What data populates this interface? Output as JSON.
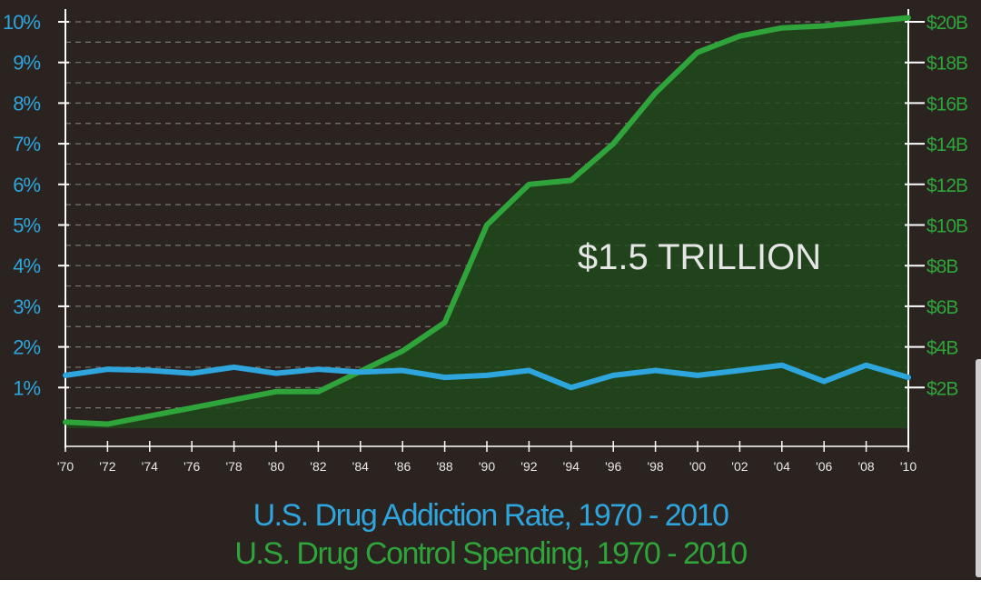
{
  "chart_data": {
    "type": "line",
    "title": "",
    "annotation": "$1.5 TRILLION",
    "x": [
      "'70",
      "'72",
      "'74",
      "'76",
      "'78",
      "'80",
      "'82",
      "'84",
      "'86",
      "'88",
      "'90",
      "'92",
      "'94",
      "'96",
      "'98",
      "'00",
      "'02",
      "'04",
      "'06",
      "'08",
      "'10"
    ],
    "series": [
      {
        "name": "U.S. Drug Addiction Rate, 1970 - 2010",
        "axis": "left",
        "color": "#2ea6dd",
        "values": [
          1.3,
          1.45,
          1.42,
          1.35,
          1.5,
          1.35,
          1.45,
          1.38,
          1.42,
          1.25,
          1.3,
          1.42,
          1.0,
          1.3,
          1.42,
          1.3,
          1.42,
          1.55,
          1.15,
          1.55,
          1.25
        ]
      },
      {
        "name": "U.S. Drug Control Spending, 1970 - 2010",
        "axis": "right",
        "color": "#2ea43a",
        "fill": true,
        "values_billions": [
          0.3,
          0.2,
          0.6,
          1.0,
          1.4,
          1.8,
          1.8,
          2.8,
          3.8,
          5.2,
          10.0,
          12.0,
          12.2,
          14.0,
          16.5,
          18.5,
          19.3,
          19.7,
          19.8,
          20.0,
          20.2
        ]
      }
    ],
    "y_left": {
      "ticks": [
        "1%",
        "2%",
        "3%",
        "4%",
        "5%",
        "6%",
        "7%",
        "8%",
        "9%",
        "10%"
      ],
      "values": [
        1,
        2,
        3,
        4,
        5,
        6,
        7,
        8,
        9,
        10
      ],
      "range": [
        0,
        10
      ],
      "color": "#2ea6dd"
    },
    "y_right": {
      "ticks": [
        "$2B",
        "$4B",
        "$6B",
        "$8B",
        "$10B",
        "$12B",
        "$14B",
        "$16B",
        "$18B",
        "$20B"
      ],
      "values": [
        2,
        4,
        6,
        8,
        10,
        12,
        14,
        16,
        18,
        20
      ],
      "range": [
        0,
        20
      ],
      "color": "#2ea43a"
    },
    "grid": true,
    "legend": {
      "position": "bottom-center",
      "rate_label": "U.S. Drug Addiction Rate, 1970 - 2010",
      "spending_label": "U.S. Drug Control Spending, 1970 - 2010"
    }
  },
  "colors": {
    "background": "#2a2320",
    "axis": "#ffffff",
    "grid": "#8a8580",
    "area_fill": "#1f4a1c",
    "annotation": "#e6e6e6"
  }
}
